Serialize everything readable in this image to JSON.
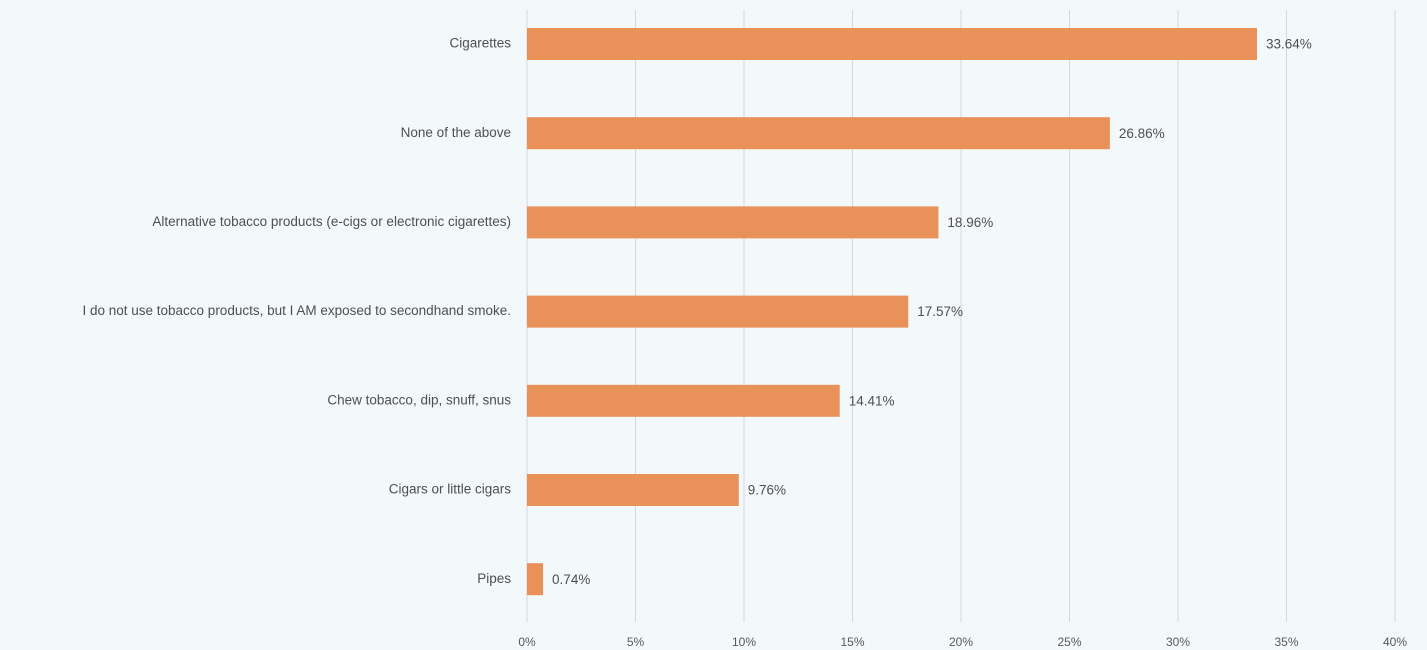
{
  "chart_data": {
    "type": "bar",
    "orientation": "horizontal",
    "categories": [
      "Cigarettes",
      "None of the above",
      "Alternative tobacco products (e-cigs or electronic cigarettes)",
      "I do not use tobacco products, but I AM exposed to secondhand smoke.",
      "Chew tobacco, dip, snuff, snus",
      "Cigars or little cigars",
      "Pipes"
    ],
    "values": [
      33.64,
      26.86,
      18.96,
      17.57,
      14.41,
      9.76,
      0.74
    ],
    "value_labels": [
      "33.64%",
      "26.86%",
      "18.96%",
      "17.57%",
      "14.41%",
      "9.76%",
      "0.74%"
    ],
    "x_ticks": [
      0,
      5,
      10,
      15,
      20,
      25,
      30,
      35,
      40
    ],
    "x_tick_labels": [
      "0%",
      "5%",
      "10%",
      "15%",
      "20%",
      "25%",
      "30%",
      "35%",
      "40%"
    ],
    "xlim": [
      0,
      40
    ],
    "title": "",
    "xlabel": "",
    "ylabel": "",
    "grid": true,
    "legend": "none",
    "bar_color": "#e8925a",
    "background_color": "#f3f8fb",
    "grid_color": "#d4d9dd"
  }
}
